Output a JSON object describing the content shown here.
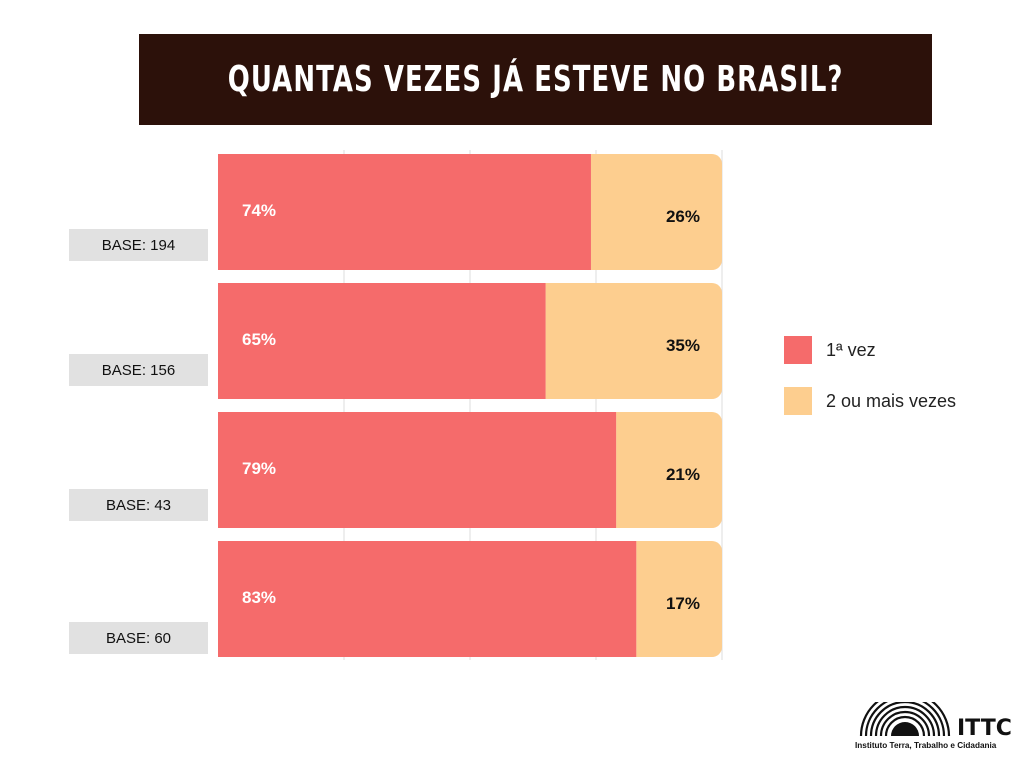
{
  "title": "QUANTAS VEZES JÁ ESTEVE NO BRASIL?",
  "colors": {
    "title_bg": "#2c110a",
    "first_time": "#f56b6b",
    "two_or_more": "#fdce8f",
    "base_bg": "#e1e1e1"
  },
  "chart_data": {
    "type": "bar",
    "orientation": "horizontal",
    "stacked": true,
    "percent_stacked": true,
    "categories": [
      "BASE: 194",
      "BASE: 156",
      "BASE: 43",
      "BASE: 60"
    ],
    "series": [
      {
        "name": "1ª vez",
        "values": [
          74,
          65,
          79,
          83
        ],
        "labels": [
          "74%",
          "65%",
          "79%",
          "83%"
        ]
      },
      {
        "name": "2 ou mais vezes",
        "values": [
          26,
          35,
          21,
          17
        ],
        "labels": [
          "26%",
          "35%",
          "21%",
          "17%"
        ]
      }
    ],
    "xlim": [
      0,
      100
    ],
    "grid": true,
    "legend_position": "right"
  },
  "logo": {
    "name": "ITTC",
    "subtitle": "Instituto Terra, Trabalho e Cidadania",
    "icon": "semicircle-stripes-icon"
  }
}
